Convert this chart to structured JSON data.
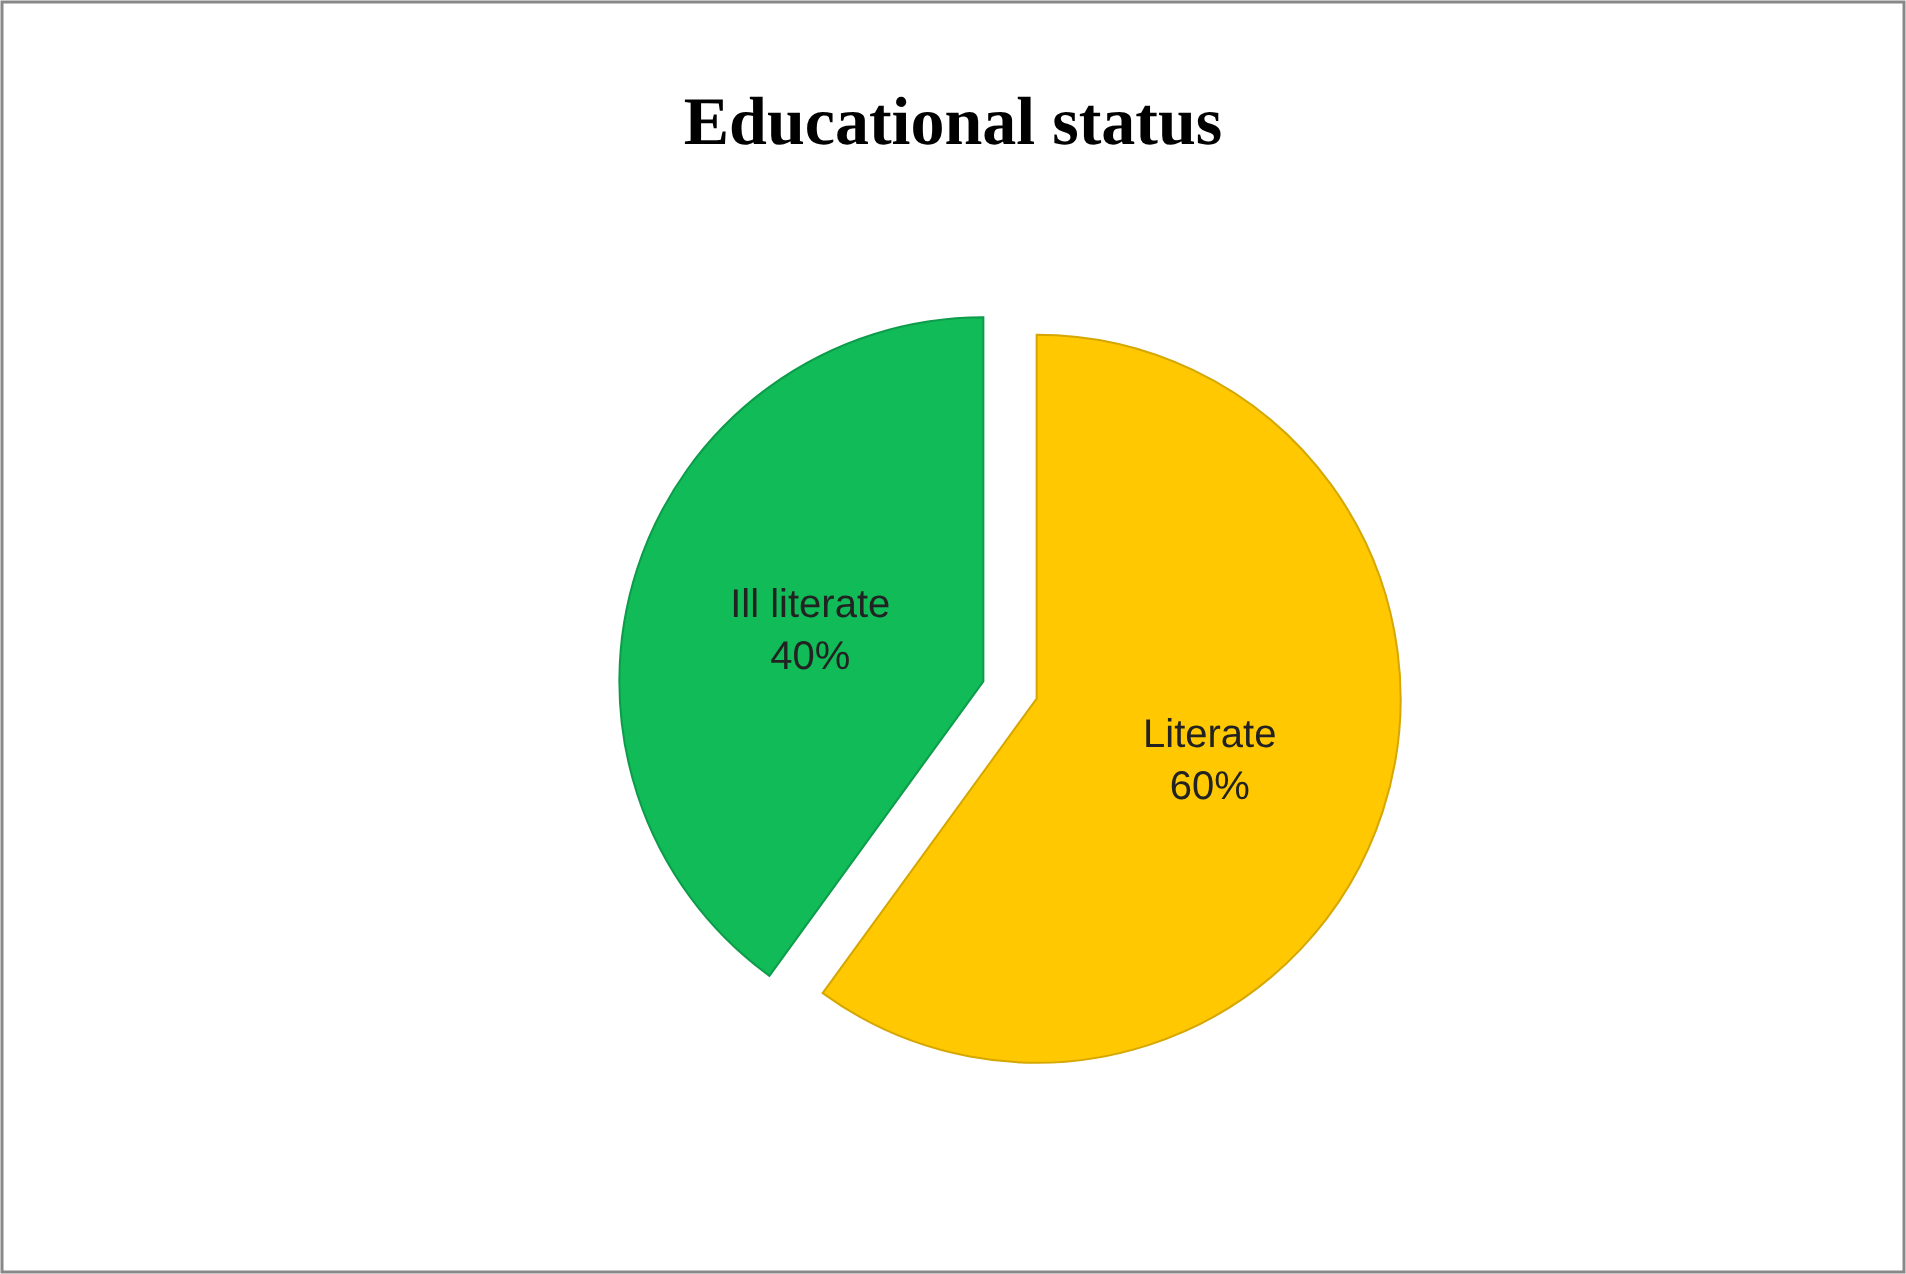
{
  "chart_data": {
    "type": "pie",
    "title": "Educational status",
    "categories": [
      "Literate",
      "Ill literate"
    ],
    "values": [
      60,
      40
    ],
    "value_labels": [
      "60%",
      "40%"
    ],
    "colors": [
      "#ffc800",
      "#10bb58"
    ],
    "legend": false
  }
}
